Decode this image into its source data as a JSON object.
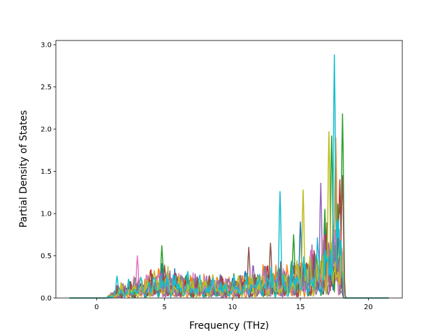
{
  "chart_data": {
    "type": "line",
    "title": "",
    "xlabel": "Frequency (THz)",
    "ylabel": "Partial Density of States",
    "xlim": [
      -3.0,
      22.5
    ],
    "ylim": [
      0.0,
      3.05
    ],
    "xticks": [
      0,
      5,
      10,
      15,
      20
    ],
    "yticks": [
      0.0,
      0.5,
      1.0,
      1.5,
      2.0,
      2.5,
      3.0
    ],
    "xtick_labels": [
      "0",
      "5",
      "10",
      "15",
      "20"
    ],
    "ytick_labels": [
      "0.0",
      "0.5",
      "1.0",
      "1.5",
      "2.0",
      "2.5",
      "3.0"
    ],
    "grid": false,
    "legend": "none",
    "series_count": 10,
    "palette": [
      "#1f77b4",
      "#ff7f0e",
      "#2ca02c",
      "#d62728",
      "#9467bd",
      "#8c564b",
      "#e377c2",
      "#7f7f7f",
      "#bcbd22",
      "#17becf"
    ],
    "x_range": [
      -2.0,
      21.5
    ],
    "nonzero_band": [
      0.7,
      18.2
    ],
    "envelope": {
      "x": [
        0.7,
        1.5,
        2.5,
        3.5,
        4.8,
        6.0,
        7.0,
        8.0,
        9.0,
        10.0,
        11.0,
        12.0,
        13.0,
        14.0,
        15.0,
        16.0,
        17.0,
        18.0,
        18.2
      ],
      "y": [
        0.0,
        0.22,
        0.3,
        0.38,
        0.55,
        0.45,
        0.42,
        0.4,
        0.36,
        0.38,
        0.48,
        0.52,
        0.55,
        0.6,
        0.7,
        0.85,
        1.2,
        1.6,
        0.0
      ]
    },
    "peaks": [
      {
        "x": 17.5,
        "y": 2.88,
        "series": 9
      },
      {
        "x": 18.1,
        "y": 2.18,
        "series": 2
      },
      {
        "x": 17.1,
        "y": 1.97,
        "series": 8
      },
      {
        "x": 17.3,
        "y": 1.92,
        "series": 2
      },
      {
        "x": 17.6,
        "y": 1.9,
        "series": 1
      },
      {
        "x": 17.9,
        "y": 1.4,
        "series": 3
      },
      {
        "x": 18.1,
        "y": 1.45,
        "series": 5
      },
      {
        "x": 16.5,
        "y": 1.36,
        "series": 4
      },
      {
        "x": 15.2,
        "y": 1.28,
        "series": 8
      },
      {
        "x": 13.5,
        "y": 1.26,
        "series": 9
      },
      {
        "x": 16.8,
        "y": 1.05,
        "series": 2
      },
      {
        "x": 15.0,
        "y": 0.9,
        "series": 0
      },
      {
        "x": 14.5,
        "y": 0.75,
        "series": 2
      },
      {
        "x": 12.8,
        "y": 0.65,
        "series": 5
      },
      {
        "x": 11.2,
        "y": 0.6,
        "series": 5
      },
      {
        "x": 4.8,
        "y": 0.62,
        "series": 2
      },
      {
        "x": 3.0,
        "y": 0.5,
        "series": 6
      },
      {
        "x": 1.5,
        "y": 0.26,
        "series": 9
      }
    ]
  }
}
